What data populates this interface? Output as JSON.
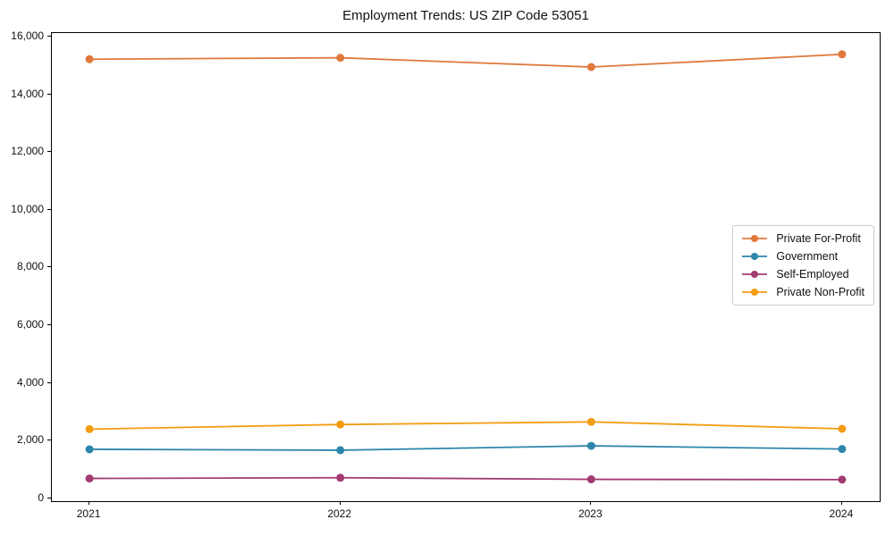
{
  "title": "Employment Trends: US ZIP Code 53051",
  "colors": {
    "private_for_profit": "#E1793E",
    "government": "#2E86AB",
    "self_employed": "#A23B72",
    "private_non_profit": "#F39C12",
    "spine": "#000000",
    "legend_border": "#cccccc",
    "background": "#ffffff"
  },
  "chart_data": {
    "type": "line",
    "title": "Employment Trends: US ZIP Code 53051",
    "x": [
      2021,
      2022,
      2023,
      2024
    ],
    "series": [
      {
        "name": "Private For-Profit",
        "color": "#E1793E",
        "values": [
          15220,
          15270,
          14950,
          15390
        ]
      },
      {
        "name": "Government",
        "color": "#2E86AB",
        "values": [
          1700,
          1670,
          1820,
          1710
        ]
      },
      {
        "name": "Self-Employed",
        "color": "#A23B72",
        "values": [
          690,
          715,
          660,
          650
        ]
      },
      {
        "name": "Private Non-Profit",
        "color": "#F39C12",
        "values": [
          2400,
          2560,
          2650,
          2410
        ]
      }
    ],
    "xlabel": "",
    "ylabel": "",
    "xlim": [
      2020.85,
      2024.15
    ],
    "ylim": [
      -97,
      16127
    ],
    "xticks": [
      2021,
      2022,
      2023,
      2024
    ],
    "xtick_labels": [
      "2021",
      "2022",
      "2023",
      "2024"
    ],
    "yticks": [
      0,
      2000,
      4000,
      6000,
      8000,
      10000,
      12000,
      14000,
      16000
    ],
    "ytick_labels": [
      "0",
      "2,000",
      "4,000",
      "6,000",
      "8,000",
      "10,000",
      "12,000",
      "14,000",
      "16,000"
    ],
    "grid": false,
    "legend_position": "center-right",
    "marker": "circle"
  }
}
